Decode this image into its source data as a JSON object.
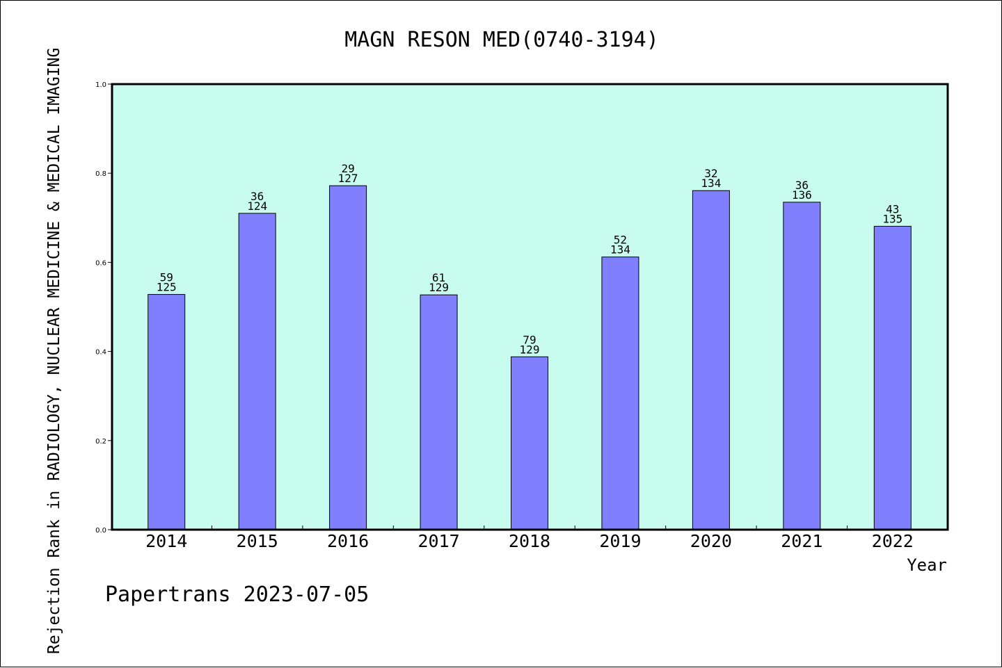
{
  "chart_data": {
    "type": "bar",
    "title": "MAGN RESON MED(0740-3194)",
    "xlabel": "Year",
    "ylabel": "Rejection Rank in RADIOLOGY, NUCLEAR MEDICINE & MEDICAL IMAGING",
    "ylim": [
      0,
      1.0
    ],
    "yticks": [
      "0.0",
      "0.2",
      "0.4",
      "0.6",
      "0.8",
      "1.0"
    ],
    "categories": [
      "2014",
      "2015",
      "2016",
      "2017",
      "2018",
      "2019",
      "2020",
      "2021",
      "2022"
    ],
    "values": [
      0.528,
      0.71,
      0.772,
      0.527,
      0.388,
      0.612,
      0.761,
      0.735,
      0.681
    ],
    "rank": [
      "59",
      "36",
      "29",
      "61",
      "79",
      "52",
      "32",
      "36",
      "43"
    ],
    "total": [
      "125",
      "124",
      "127",
      "129",
      "129",
      "134",
      "134",
      "136",
      "135"
    ],
    "grid": false,
    "colors": {
      "plot_bg": "#c8fcee",
      "bar": "#8080ff",
      "bar_edge": "#000000"
    }
  },
  "footer": {
    "watermark": "Papertrans 2023-07-05"
  }
}
